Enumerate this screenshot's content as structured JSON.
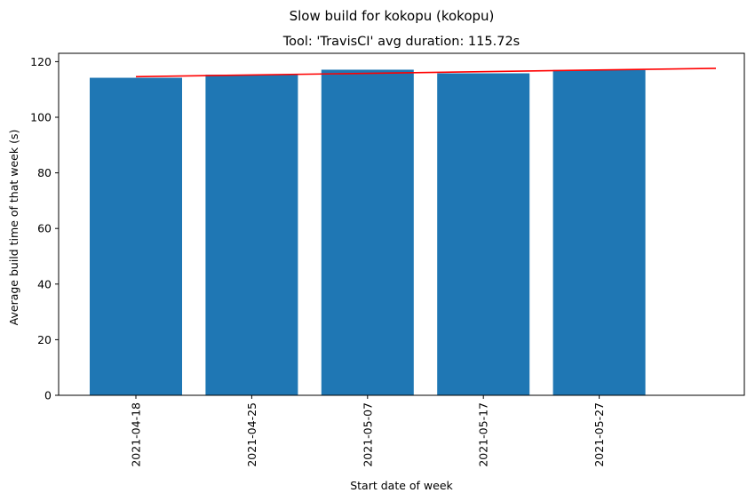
{
  "chart_data": {
    "type": "bar",
    "suptitle": "Slow build for kokopu (kokopu)",
    "title": "Tool: 'TravisCI' avg duration: 115.72s",
    "xlabel": "Start date of week",
    "ylabel": "Average build time of that week (s)",
    "categories": [
      "2021-04-18",
      "2021-04-25",
      "2021-05-07",
      "2021-05-17",
      "2021-05-27"
    ],
    "values": [
      114.2,
      115.3,
      117.1,
      115.8,
      117.0
    ],
    "ylim": [
      0,
      123
    ],
    "yticks": [
      0,
      20,
      40,
      60,
      80,
      100,
      120
    ],
    "bar_color": "#1f77b4",
    "trend_line": {
      "color": "#ff0000",
      "start": {
        "x": "2021-04-18",
        "y": 114.6
      },
      "end_y": 117.6
    },
    "grid": false,
    "legend": "none"
  }
}
